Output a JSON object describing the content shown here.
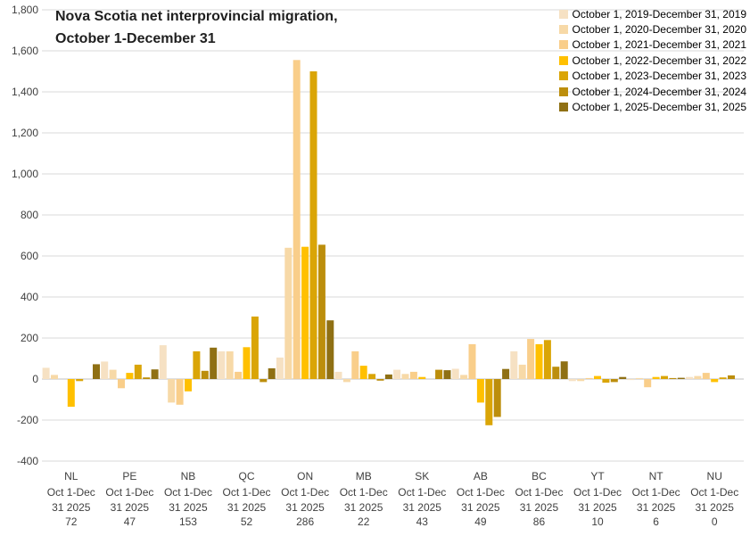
{
  "chart_data": {
    "type": "bar",
    "title_line1": "Nova Scotia net interprovincial migration,",
    "title_line2": "October 1-December 31",
    "legend_position": "top-right",
    "grid": true,
    "ylim": [
      -400,
      1800
    ],
    "y_ticks": [
      {
        "value": 1800,
        "label": "1,800"
      },
      {
        "value": 1600,
        "label": "1,600"
      },
      {
        "value": 1400,
        "label": "1,400"
      },
      {
        "value": 1200,
        "label": "1,200"
      },
      {
        "value": 1000,
        "label": "1,000"
      },
      {
        "value": 800,
        "label": "800"
      },
      {
        "value": 600,
        "label": "600"
      },
      {
        "value": 400,
        "label": "400"
      },
      {
        "value": 200,
        "label": "200"
      },
      {
        "value": 0,
        "label": "0"
      },
      {
        "value": -200,
        "label": "-200"
      },
      {
        "value": -400,
        "label": "-400"
      }
    ],
    "categories": [
      {
        "code": "NL",
        "period_line1": "Oct 1-Dec",
        "period_line2": "31 2025",
        "value_label": "72"
      },
      {
        "code": "PE",
        "period_line1": "Oct 1-Dec",
        "period_line2": "31 2025",
        "value_label": "47"
      },
      {
        "code": "NB",
        "period_line1": "Oct 1-Dec",
        "period_line2": "31 2025",
        "value_label": "153"
      },
      {
        "code": "QC",
        "period_line1": "Oct 1-Dec",
        "period_line2": "31 2025",
        "value_label": "52"
      },
      {
        "code": "ON",
        "period_line1": "Oct 1-Dec",
        "period_line2": "31 2025",
        "value_label": "286"
      },
      {
        "code": "MB",
        "period_line1": "Oct 1-Dec",
        "period_line2": "31 2025",
        "value_label": "22"
      },
      {
        "code": "SK",
        "period_line1": "Oct 1-Dec",
        "period_line2": "31 2025",
        "value_label": "43"
      },
      {
        "code": "AB",
        "period_line1": "Oct 1-Dec",
        "period_line2": "31 2025",
        "value_label": "49"
      },
      {
        "code": "BC",
        "period_line1": "Oct 1-Dec",
        "period_line2": "31 2025",
        "value_label": "86"
      },
      {
        "code": "YT",
        "period_line1": "Oct 1-Dec",
        "period_line2": "31 2025",
        "value_label": "10"
      },
      {
        "code": "NT",
        "period_line1": "Oct 1-Dec",
        "period_line2": "31 2025",
        "value_label": "6"
      },
      {
        "code": "NU",
        "period_line1": "Oct 1-Dec",
        "period_line2": "31 2025",
        "value_label": "0"
      }
    ],
    "series": [
      {
        "name": "October 1, 2019-December 31, 2019",
        "color": "#F6E1C3",
        "values": [
          55,
          85,
          165,
          135,
          105,
          35,
          45,
          50,
          135,
          -10,
          -5,
          10
        ]
      },
      {
        "name": "October 1, 2020-December 31, 2020",
        "color": "#F7D9A7",
        "values": [
          20,
          45,
          -115,
          135,
          640,
          -15,
          25,
          20,
          70,
          -10,
          5,
          15
        ]
      },
      {
        "name": "October 1, 2021-December 31, 2021",
        "color": "#F9CE8A",
        "values": [
          0,
          -45,
          -125,
          35,
          1555,
          135,
          35,
          170,
          195,
          5,
          -40,
          30
        ]
      },
      {
        "name": "October 1, 2022-December 31, 2022",
        "color": "#FFC000",
        "values": [
          -135,
          30,
          -60,
          155,
          645,
          65,
          10,
          -115,
          170,
          15,
          10,
          -15
        ]
      },
      {
        "name": "October 1, 2023-December 31, 2023",
        "color": "#DAA507",
        "values": [
          -10,
          70,
          135,
          305,
          1500,
          25,
          0,
          -225,
          190,
          -18,
          15,
          8
        ]
      },
      {
        "name": "October 1, 2024-December 31, 2024",
        "color": "#BC8E0C",
        "values": [
          0,
          8,
          40,
          -15,
          655,
          -8,
          45,
          -185,
          60,
          -15,
          5,
          18
        ]
      },
      {
        "name": "October 1, 2025-December 31, 2025",
        "color": "#8F7014",
        "values": [
          72,
          47,
          153,
          52,
          286,
          22,
          43,
          49,
          86,
          10,
          6,
          0
        ]
      }
    ],
    "colors": {
      "gridline": "#D9D9D9",
      "zero_line": "#BFBFBF",
      "axis_text": "#404040",
      "title_text": "#1F1F1F"
    }
  }
}
